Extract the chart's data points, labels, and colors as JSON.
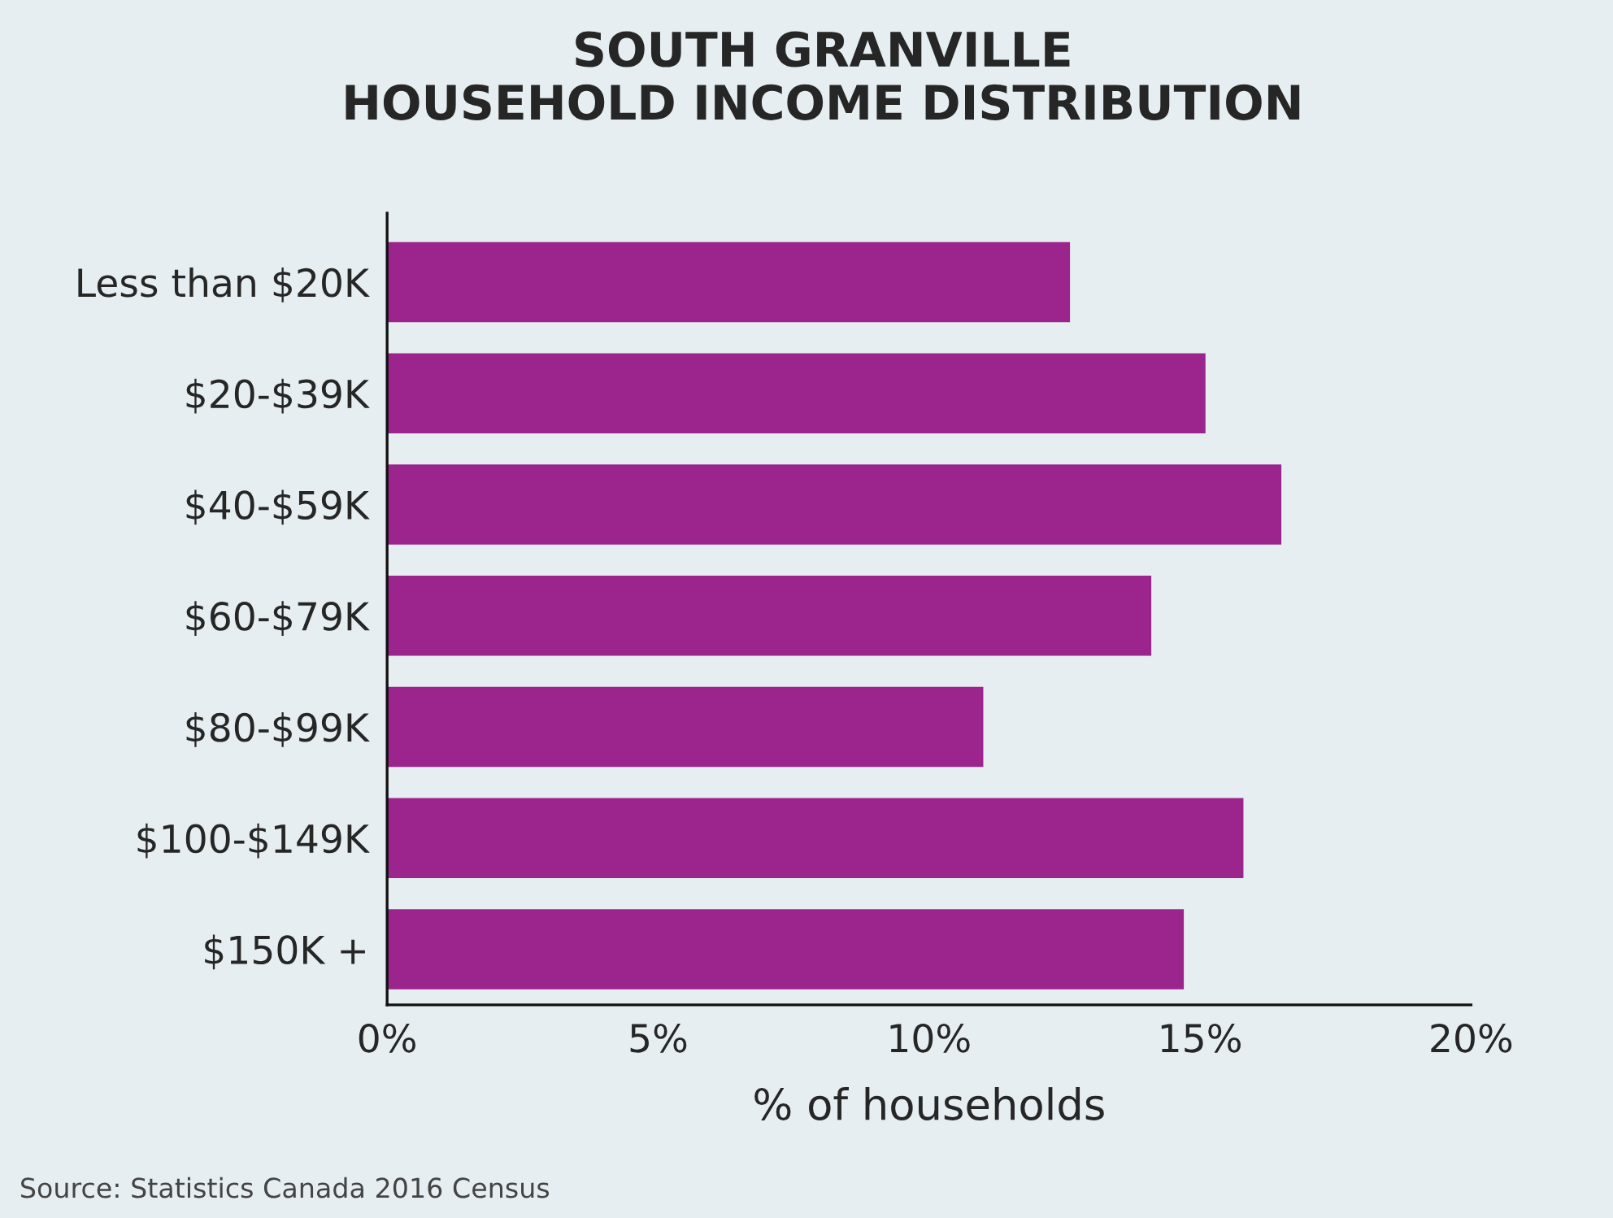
{
  "chart_data": {
    "type": "bar",
    "orientation": "horizontal",
    "title": "SOUTH GRANVILLE\nHOUSEHOLD INCOME DISTRIBUTION",
    "xlabel": "% of households",
    "categories": [
      "Less than $20K",
      "$20-$39K",
      "$40-$59K",
      "$60-$79K",
      "$80-$99K",
      "$100-$149K",
      "$150K +"
    ],
    "values": [
      12.6,
      15.1,
      16.5,
      14.1,
      11.0,
      15.8,
      14.7
    ],
    "color": "#9b258c",
    "xlim": [
      0,
      20
    ],
    "xticks": [
      {
        "value": 0,
        "label": "0%"
      },
      {
        "value": 5,
        "label": "5%"
      },
      {
        "value": 10,
        "label": "10%"
      },
      {
        "value": 15,
        "label": "15%"
      },
      {
        "value": 20,
        "label": "20%"
      }
    ],
    "grid": false,
    "annotations": [
      "Source: Statistics Canada 2016 Census"
    ]
  }
}
